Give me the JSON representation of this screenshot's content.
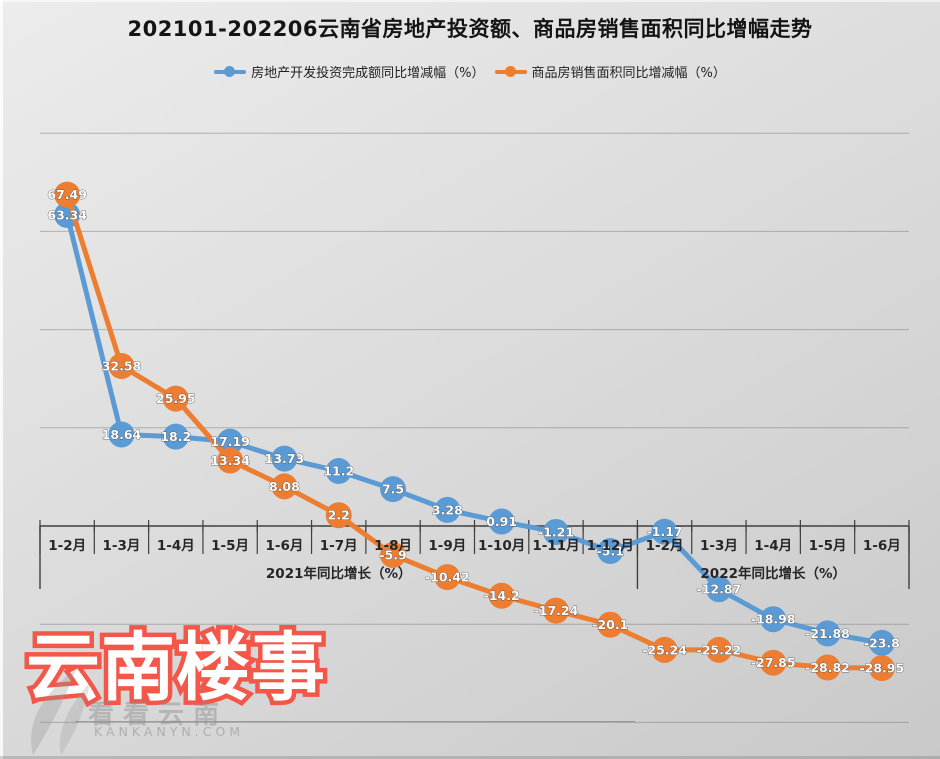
{
  "title": "202101-202206云南省房地产投资额、商品房销售面积同比增幅走势",
  "legend": [
    {
      "label": "房地产开发投资完成额同比增减幅（%）",
      "color": "#5B9BD5"
    },
    {
      "label": "商品房销售面积同比增减幅（%）",
      "color": "#ED7D31"
    }
  ],
  "chart_data": {
    "type": "line",
    "categories": [
      "1-2月",
      "1-3月",
      "1-4月",
      "1-5月",
      "1-6月",
      "1-7月",
      "1-8月",
      "1-9月",
      "1-10月",
      "1-11月",
      "1-12月",
      "1-2月",
      "1-3月",
      "1-4月",
      "1-5月",
      "1-6月"
    ],
    "series": [
      {
        "name": "房地产开发投资完成额同比增减幅（%）",
        "color": "#5B9BD5",
        "values": [
          63.34,
          18.64,
          18.2,
          17.19,
          13.73,
          11.2,
          7.5,
          3.28,
          0.91,
          -1.21,
          -5.1,
          -1.17,
          -12.87,
          -18.98,
          -21.88,
          -23.8
        ]
      },
      {
        "name": "商品房销售面积同比增减幅（%）",
        "color": "#ED7D31",
        "values": [
          67.49,
          32.58,
          25.95,
          13.34,
          8.08,
          2.2,
          -5.9,
          -10.42,
          -14.2,
          -17.24,
          -20.1,
          -25.24,
          -25.22,
          -27.85,
          -28.82,
          -28.95
        ]
      }
    ],
    "group_labels": [
      "2021年同比增长（%）",
      "2022年同比增长（%）"
    ],
    "group_bounds": [
      0,
      11,
      16
    ],
    "ylim": [
      -40,
      80
    ],
    "y_gridlines": [
      80,
      60,
      40,
      20,
      -20,
      -40
    ],
    "grid": "horizontal",
    "legend_position": "top",
    "data_labels": "center"
  },
  "watermark": {
    "main": "云南楼事",
    "sub": "看看云南",
    "sub2": "KANKANYN.COM",
    "color": "#f25749"
  }
}
